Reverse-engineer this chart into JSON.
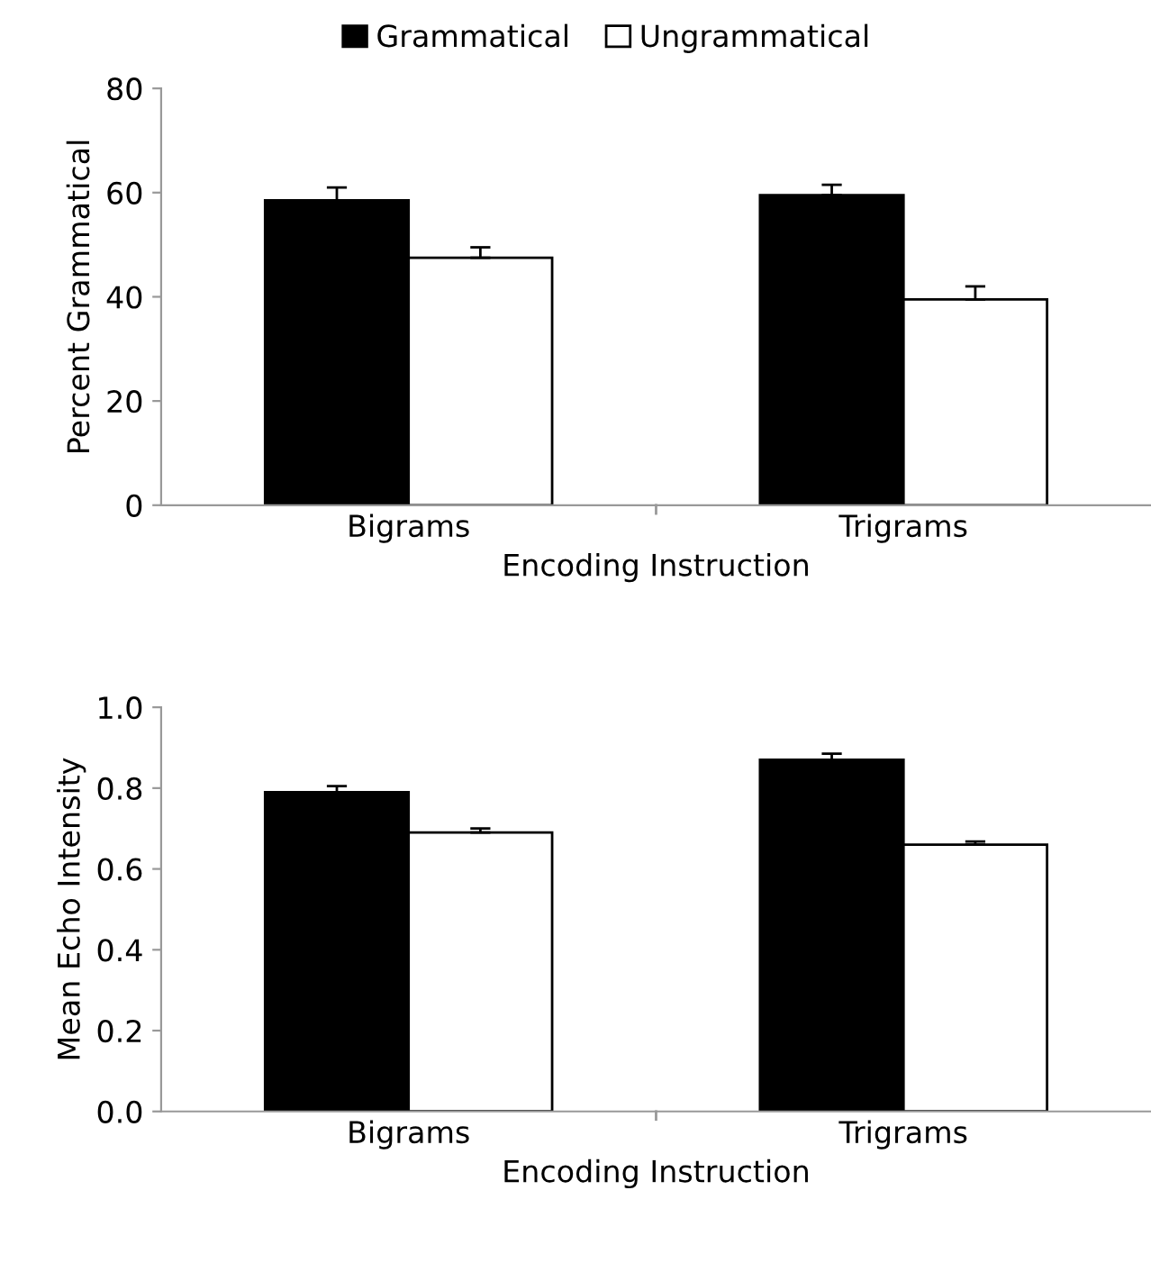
{
  "chart_data": [
    {
      "type": "bar",
      "categories": [
        "Bigrams",
        "Trigrams"
      ],
      "xlabel": "Encoding Instruction",
      "ylabel": "Percent Grammatical",
      "ylim": [
        0,
        80
      ],
      "yticks": [
        0,
        20,
        40,
        60,
        80
      ],
      "legend": "top",
      "grid": false,
      "series": [
        {
          "name": "Grammatical",
          "color": "#000000",
          "values": [
            58.5,
            59.5
          ],
          "errors": [
            [
              58.5,
              61
            ],
            [
              59.5,
              61.5
            ]
          ]
        },
        {
          "name": "Ungrammatical",
          "color": "#ffffff",
          "values": [
            47.5,
            39.5
          ],
          "errors": [
            [
              47.5,
              49.5
            ],
            [
              39.5,
              42
            ]
          ]
        }
      ]
    },
    {
      "type": "bar",
      "categories": [
        "Bigrams",
        "Trigrams"
      ],
      "xlabel": "Encoding Instruction",
      "ylabel": "Mean Echo Intensity",
      "ylim": [
        0,
        1.0
      ],
      "yticks": [
        {
          "value": 0,
          "label": "0.0"
        },
        0.2,
        0.4,
        0.6,
        0.8,
        {
          "value": 1.0,
          "label": "1.0"
        }
      ],
      "legend": false,
      "grid": false,
      "series": [
        {
          "color": "#000000",
          "values": [
            0.79,
            0.87
          ],
          "errors": [
            [
              0.79,
              0.805
            ],
            [
              0.87,
              0.885
            ]
          ]
        },
        {
          "color": "#ffffff",
          "values": [
            0.69,
            0.66
          ],
          "errors": [
            [
              0.69,
              0.7
            ],
            [
              0.66,
              0.668
            ]
          ]
        }
      ]
    }
  ]
}
